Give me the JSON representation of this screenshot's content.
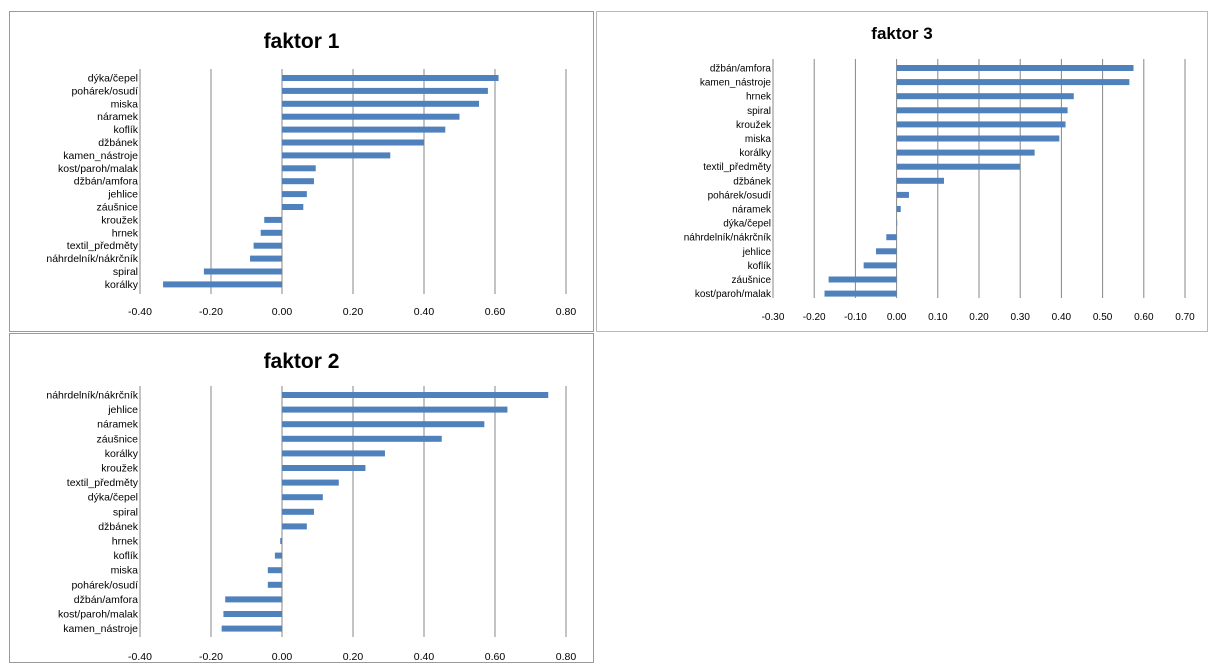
{
  "colors": {
    "bar": "#4f81bd",
    "grid": "#878787",
    "text": "#000000",
    "border": "#9a9a9a"
  },
  "chart_data": [
    {
      "type": "bar",
      "orientation": "horizontal",
      "title": "faktor 1",
      "categories": [
        "dýka/čepel",
        "pohárek/osudí",
        "miska",
        "náramek",
        "koflík",
        "džbánek",
        "kamen_nástroje",
        "kost/paroh/malak",
        "džbán/amfora",
        "jehlice",
        "záušnice",
        "kroužek",
        "hrnek",
        "textil_předměty",
        "náhrdelník/nákrčník",
        "spiral",
        "korálky"
      ],
      "values": [
        0.61,
        0.58,
        0.555,
        0.5,
        0.46,
        0.4,
        0.305,
        0.095,
        0.09,
        0.07,
        0.06,
        -0.05,
        -0.06,
        -0.08,
        -0.09,
        -0.22,
        -0.335
      ],
      "xlim": [
        -0.4,
        0.8
      ],
      "xticks": [
        "-0.40",
        "-0.20",
        "0.00",
        "0.20",
        "0.40",
        "0.60",
        "0.80"
      ],
      "grid": "vertical"
    },
    {
      "type": "bar",
      "orientation": "horizontal",
      "title": "faktor 3",
      "categories": [
        "džbán/amfora",
        "kamen_nástroje",
        "hrnek",
        "spiral",
        "kroužek",
        "miska",
        "korálky",
        "textil_předměty",
        "džbánek",
        "pohárek/osudí",
        "náramek",
        "dýka/čepel",
        "náhrdelník/nákrčník",
        "jehlice",
        "koflík",
        "záušnice",
        "kost/paroh/malak"
      ],
      "values": [
        0.575,
        0.565,
        0.43,
        0.415,
        0.41,
        0.395,
        0.335,
        0.3,
        0.115,
        0.03,
        0.01,
        0.0,
        -0.025,
        -0.05,
        -0.08,
        -0.165,
        -0.175
      ],
      "xlim": [
        -0.3,
        0.7
      ],
      "xticks": [
        "-0.30",
        "-0.20",
        "-0.10",
        "0.00",
        "0.10",
        "0.20",
        "0.30",
        "0.40",
        "0.50",
        "0.60",
        "0.70"
      ],
      "grid": "vertical"
    },
    {
      "type": "bar",
      "orientation": "horizontal",
      "title": "faktor 2",
      "categories": [
        "náhrdelník/nákrčník",
        "jehlice",
        "náramek",
        "záušnice",
        "korálky",
        "kroužek",
        "textil_předměty",
        "dýka/čepel",
        "spiral",
        "džbánek",
        "hrnek",
        "koflík",
        "miska",
        "pohárek/osudí",
        "džbán/amfora",
        "kost/paroh/malak",
        "kamen_nástroje"
      ],
      "values": [
        0.75,
        0.635,
        0.57,
        0.45,
        0.29,
        0.235,
        0.16,
        0.115,
        0.09,
        0.07,
        -0.005,
        -0.02,
        -0.04,
        -0.04,
        -0.16,
        -0.165,
        -0.17
      ],
      "xlim": [
        -0.4,
        0.8
      ],
      "xticks": [
        "-0.40",
        "-0.20",
        "0.00",
        "0.20",
        "0.40",
        "0.60",
        "0.80"
      ],
      "grid": "vertical"
    }
  ]
}
